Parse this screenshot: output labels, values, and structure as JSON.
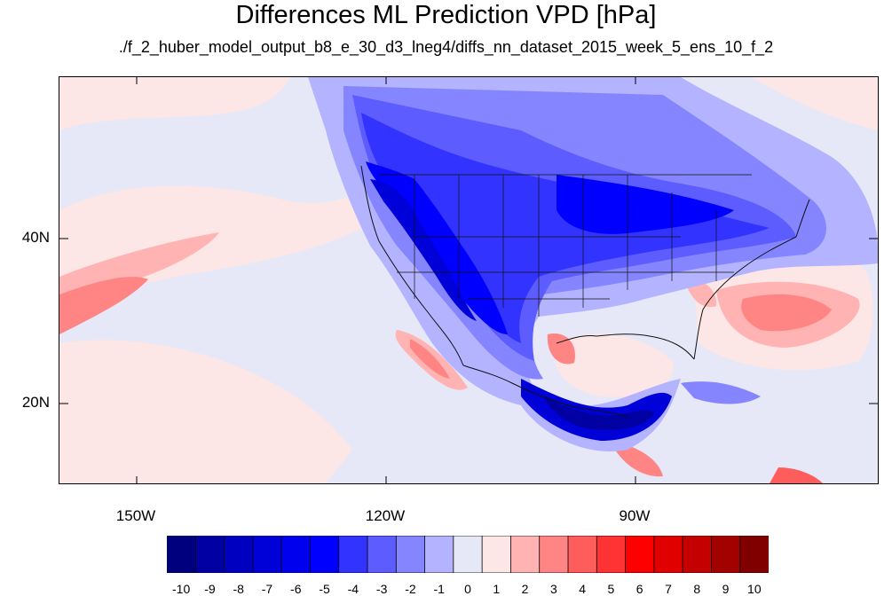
{
  "title": "Differences ML Prediction VPD [hPa]",
  "subtitle": "./f_2_huber_model_output_b8_e_30_d3_lneg4/diffs_nn_dataset_2015_week_5_ens_10_f_2",
  "lat_labels": [
    "40N",
    "20N"
  ],
  "lon_labels": [
    "150W",
    "120W",
    "90W"
  ],
  "colorbar": {
    "labels": [
      "-10",
      "-9",
      "-8",
      "-7",
      "-6",
      "-5",
      "-4",
      "-3",
      "-2",
      "-1",
      "0",
      "1",
      "2",
      "3",
      "4",
      "5",
      "6",
      "7",
      "8",
      "9",
      "10"
    ],
    "colors": [
      "#00007f",
      "#0000a3",
      "#0000c0",
      "#0000d8",
      "#0000ee",
      "#0000ff",
      "#3333ff",
      "#5c5cff",
      "#8585ff",
      "#b3b3ff",
      "#e6e8f7",
      "#fce6e6",
      "#ffb3b3",
      "#ff8585",
      "#ff5c5c",
      "#ff3333",
      "#ff0000",
      "#e00000",
      "#c40000",
      "#a30000",
      "#800000"
    ]
  },
  "fill_colors": {
    "background": "#e6e8f7",
    "light_red": "#fce6e6",
    "red_1": "#ffb3b3",
    "red_2": "#ff8585",
    "red_3": "#ff5c5c",
    "blue_1": "#b3b3ff",
    "blue_2": "#8585ff",
    "blue_3": "#5c5cff",
    "blue_4": "#3333ff",
    "blue_5": "#0000ff",
    "blue_6": "#0000d8",
    "blue_7": "#0000a3"
  }
}
